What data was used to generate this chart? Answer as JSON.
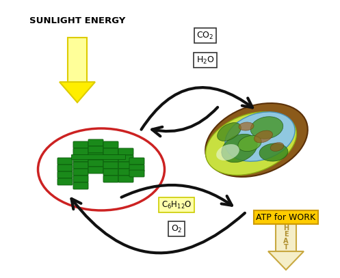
{
  "bg_color": "#ffffff",
  "sunlight_text": "SUNLIGHT ENERGY",
  "chloroplast_border": "#cc2222",
  "chloroplast_rect_color": "#1a8a1a",
  "rect_edge_color": "#0a5a0a",
  "arrow_color": "#111111",
  "atp_box_color": "#ffcc00",
  "atp_text": "ATP for WORK",
  "heat_arrow_fill": "#f5eec8",
  "heat_arrow_edge": "#c8a840",
  "heat_text_color": "#b09030",
  "co2_label": "CO$_2$",
  "h2o_label": "H$_2$O",
  "c6h12o_label": "C$_6$H$_{12}$O",
  "o2_label": "O$_2$",
  "sun_body_top": "#fffff0",
  "sun_body_bot": "#ffee00",
  "sun_edge": "#ddcc00",
  "mito_outer_fill": "#8b5a1a",
  "mito_outer_edge": "#5a3008",
  "mito_lime": "#c8e040",
  "mito_lime_edge": "#8aaa10",
  "mito_green_dark": "#3a8020",
  "mito_blue_fill": "#90c8e0",
  "mito_blue_edge": "#4890b8",
  "mito_green2": "#60aa30",
  "mito_brown_inner": "#a06828",
  "cycle_lw": 3.0,
  "cycle_ms": 25
}
